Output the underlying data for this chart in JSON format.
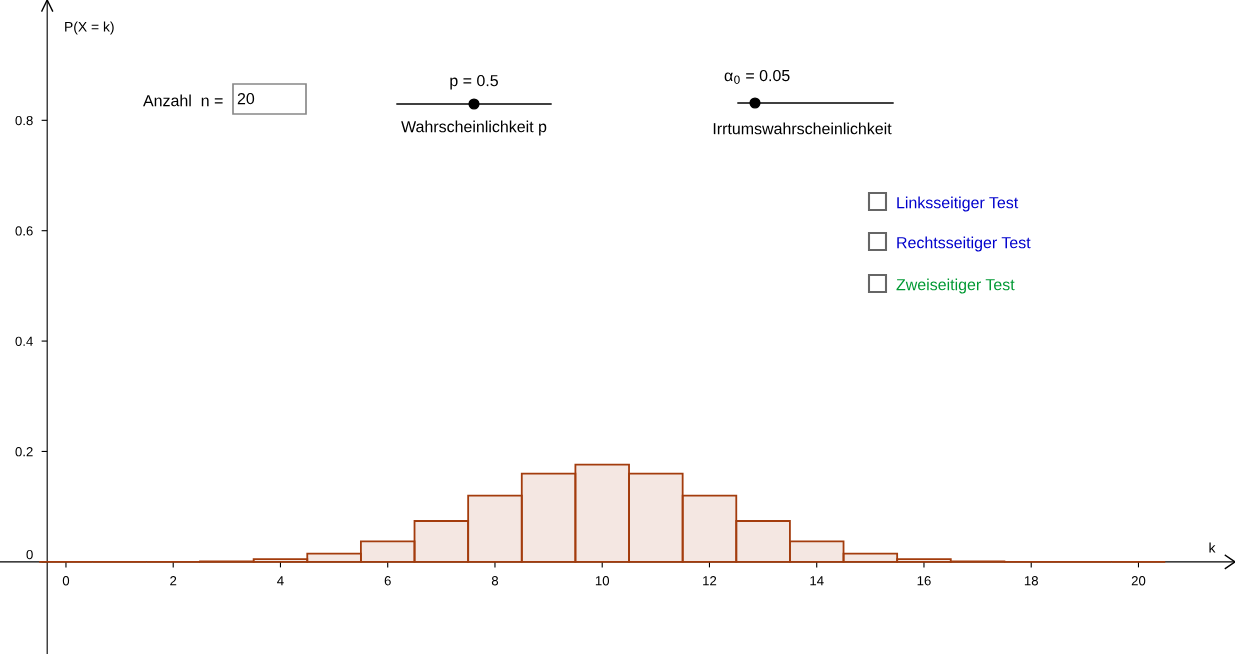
{
  "chart_data": {
    "type": "bar",
    "x": [
      0,
      1,
      2,
      3,
      4,
      5,
      6,
      7,
      8,
      9,
      10,
      11,
      12,
      13,
      14,
      15,
      16,
      17,
      18,
      19,
      20
    ],
    "values": [
      0,
      0,
      0,
      0.001,
      0.005,
      0.015,
      0.037,
      0.074,
      0.12,
      0.16,
      0.176,
      0.16,
      0.12,
      0.074,
      0.037,
      0.015,
      0.005,
      0.001,
      0,
      0,
      0
    ],
    "color": "#a33c0d",
    "xlabel": "k",
    "ylabel": "P(X = k)",
    "xlim": [
      -1.23,
      21.8
    ],
    "ylim": [
      -0.167,
      1.018
    ],
    "xticks": [
      0,
      2,
      4,
      6,
      8,
      10,
      12,
      14,
      16,
      18,
      20
    ],
    "yticks": [
      0,
      0.2,
      0.4,
      0.6,
      0.8
    ],
    "grid": false,
    "legend": false,
    "annotations": [
      "Anzahl  n =",
      "20",
      "p = 0.5",
      "Wahrscheinlichkeit p",
      "α$_{0}$ = 0.05",
      "Irrtumswahrscheinlichkeit",
      "Linksseitiger Test",
      "Rechtsseitiger Test",
      "Zweiseitiger Test"
    ]
  }
}
